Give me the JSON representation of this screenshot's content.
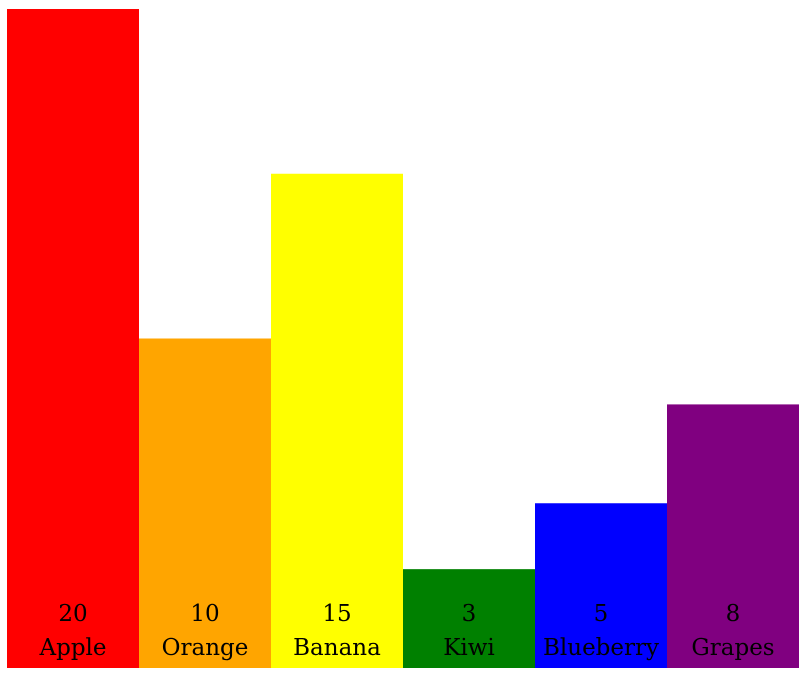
{
  "chart_data": {
    "type": "bar",
    "categories": [
      "Apple",
      "Orange",
      "Banana",
      "Kiwi",
      "Blueberry",
      "Grapes"
    ],
    "values": [
      20,
      10,
      15,
      3,
      5,
      8
    ],
    "colors": [
      "#ff0000",
      "#ffa500",
      "#ffff00",
      "#008000",
      "#0000ff",
      "#800080"
    ],
    "ylim": [
      0,
      20
    ],
    "grid": false
  }
}
